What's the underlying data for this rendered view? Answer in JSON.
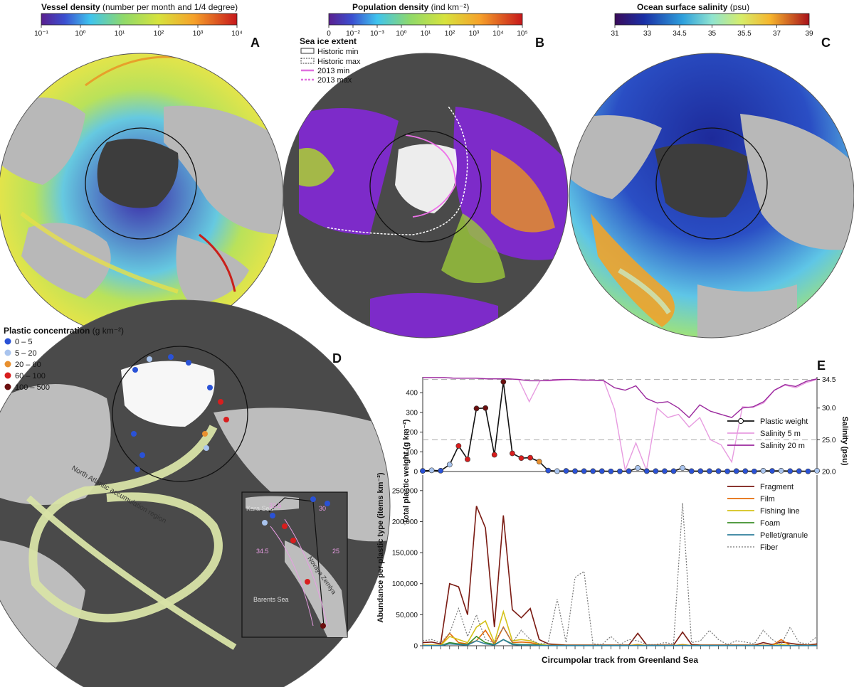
{
  "panels": {
    "A": {
      "letter": "A",
      "colorbar_title_bold": "Vessel density",
      "colorbar_title_rest": " (number per month and 1/4 degree)",
      "ticks": [
        "10⁻¹",
        "10⁰",
        "10¹",
        "10²",
        "10³",
        "10⁴"
      ]
    },
    "B": {
      "letter": "B",
      "colorbar_title_bold": "Population density",
      "colorbar_title_rest": " (ind km⁻²)",
      "ticks": [
        "0",
        "10⁻²",
        "10⁻³",
        "10⁰",
        "10¹",
        "10²",
        "10³",
        "10⁴",
        "10⁵"
      ],
      "ice_legend_title": "Sea ice extent",
      "ice_legend": [
        "Historic min",
        "Historic max",
        "2013 min",
        "2013 max"
      ]
    },
    "C": {
      "letter": "C",
      "colorbar_title_bold": "Ocean surface salinity",
      "colorbar_title_rest": " (psu)",
      "ticks": [
        "31",
        "33",
        "34.5",
        "35",
        "35.5",
        "37",
        "39"
      ]
    },
    "D": {
      "letter": "D",
      "legend_title_bold": "Plastic concentration",
      "legend_title_rest": " (g km⁻²)",
      "legend": [
        {
          "label": "0 – 5",
          "color": "#2a52d6"
        },
        {
          "label": "5 – 20",
          "color": "#a9c4ee"
        },
        {
          "label": "20 – 60",
          "color": "#e8902f"
        },
        {
          "label": "60 – 100",
          "color": "#d81e1e"
        },
        {
          "label": "100 – 500",
          "color": "#6b0f0f"
        }
      ],
      "region_label": "North Atlantic accumulation region",
      "inset_labels": {
        "kara": "Kara Sea",
        "barents": "Barents Sea",
        "novaya": "Novaya Zemlya",
        "c33": "33.5",
        "c34": "34.5",
        "c30": "30",
        "c25": "25"
      }
    },
    "E": {
      "letter": "E"
    }
  },
  "chart_data": [
    {
      "type": "line",
      "panel": "E-top",
      "xlabel": "",
      "ylabel": "Total plastic weight (g km⁻²)",
      "y2label": "Salinity (psu)",
      "ylim": [
        0,
        480
      ],
      "y2lim": [
        20.0,
        34.9
      ],
      "yticks": [
        0,
        100,
        200,
        300,
        400
      ],
      "y2ticks": [
        "20.0",
        "25.0",
        "30.0",
        "34.5"
      ],
      "y2tick_values": [
        20.0,
        25.0,
        30.0,
        34.5
      ],
      "dashed_ref": [
        25.0,
        34.5
      ],
      "series": [
        {
          "name": "Plastic weight",
          "axis": "left",
          "color": "#111111",
          "values": [
            3,
            6,
            4,
            35,
            130,
            62,
            320,
            322,
            85,
            455,
            92,
            68,
            70,
            50,
            5,
            2,
            3,
            2,
            2,
            2,
            2,
            1,
            1,
            2,
            18,
            2,
            2,
            2,
            2,
            18,
            2,
            2,
            2,
            2,
            1,
            2,
            2,
            1,
            4,
            3,
            4,
            2,
            2,
            1,
            4
          ],
          "point_colors": [
            "#2a52d6",
            "#a9c4ee",
            "#2a52d6",
            "#a9c4ee",
            "#d81e1e",
            "#d81e1e",
            "#6b0f0f",
            "#6b0f0f",
            "#d81e1e",
            "#6b0f0f",
            "#d81e1e",
            "#d81e1e",
            "#d81e1e",
            "#e8902f",
            "#2a52d6",
            "#a9c4ee",
            "#2a52d6",
            "#2a52d6",
            "#2a52d6",
            "#2a52d6",
            "#2a52d6",
            "#2a52d6",
            "#2a52d6",
            "#2a52d6",
            "#a9c4ee",
            "#2a52d6",
            "#2a52d6",
            "#2a52d6",
            "#2a52d6",
            "#a9c4ee",
            "#2a52d6",
            "#2a52d6",
            "#2a52d6",
            "#2a52d6",
            "#2a52d6",
            "#2a52d6",
            "#2a52d6",
            "#2a52d6",
            "#a9c4ee",
            "#2a52d6",
            "#a9c4ee",
            "#2a52d6",
            "#2a52d6",
            "#2a52d6",
            "#a9c4ee"
          ]
        },
        {
          "name": "Salinity 5 m",
          "axis": "right",
          "color": "#e79be0",
          "values": [
            34.8,
            34.8,
            34.8,
            34.7,
            34.7,
            34.7,
            34.6,
            34.6,
            34.6,
            34.5,
            31.0,
            34.3,
            34.3,
            34.4,
            34.5,
            34.4,
            34.4,
            34.3,
            29.8,
            20.2,
            24.5,
            20.2,
            30.0,
            28.5,
            29.0,
            27.0,
            28.5,
            25.0,
            24.2,
            21.5,
            30.2,
            30.1,
            30.8,
            32.8,
            33.6,
            33.2,
            34.0,
            34.5
          ]
        },
        {
          "name": "Salinity 20 m",
          "axis": "right",
          "color": "#9b2a9e",
          "values": [
            34.8,
            34.8,
            34.8,
            34.7,
            34.7,
            34.7,
            34.6,
            34.6,
            34.6,
            34.5,
            34.3,
            34.3,
            34.4,
            34.5,
            34.5,
            34.4,
            34.4,
            34.3,
            33.2,
            32.8,
            33.5,
            31.5,
            30.8,
            31.0,
            30.0,
            28.5,
            30.5,
            29.5,
            29.0,
            28.5,
            30.0,
            30.2,
            31.0,
            32.8,
            33.7,
            33.4,
            34.2,
            34.6
          ]
        }
      ]
    },
    {
      "type": "line",
      "panel": "E-bottom",
      "xlabel": "Circumpolar track from Greenland Sea",
      "ylabel": "Abundance per plastic type (items km⁻²)",
      "ylim": [
        0,
        275000
      ],
      "yticks": [
        "0",
        "50,000",
        "100,000",
        "150,000",
        "200,000",
        "250,000"
      ],
      "ytick_values": [
        0,
        50000,
        100000,
        150000,
        200000,
        250000
      ],
      "series": [
        {
          "name": "Fragment",
          "color": "#7a1a12",
          "values": [
            5000,
            6000,
            3000,
            100000,
            95000,
            50000,
            225000,
            190000,
            30000,
            210000,
            58000,
            45000,
            60000,
            10000,
            3000,
            2000,
            1000,
            1000,
            1000,
            1000,
            1000,
            1000,
            1000,
            1000,
            20000,
            1000,
            1000,
            1000,
            1000,
            22000,
            2000,
            1000,
            1000,
            1000,
            1000,
            1000,
            1000,
            1000,
            5000,
            2000,
            6000,
            4000,
            2000,
            1000,
            3000
          ]
        },
        {
          "name": "Film",
          "color": "#e46c0a",
          "values": [
            1000,
            1000,
            1000,
            20000,
            5000,
            3000,
            8000,
            25000,
            2000,
            30000,
            5000,
            6000,
            5000,
            2000,
            500,
            500,
            300,
            300,
            300,
            300,
            300,
            300,
            300,
            300,
            2000,
            300,
            300,
            300,
            300,
            2000,
            300,
            300,
            300,
            300,
            300,
            300,
            300,
            300,
            1000,
            300,
            10000,
            300,
            300,
            300,
            300
          ]
        },
        {
          "name": "Fishing line",
          "color": "#d4c21a",
          "values": [
            500,
            1000,
            500,
            15000,
            10000,
            5000,
            30000,
            40000,
            5000,
            55000,
            8000,
            10000,
            8000,
            3000,
            500,
            500,
            300,
            300,
            300,
            300,
            300,
            300,
            300,
            300,
            1000,
            300,
            300,
            300,
            300,
            1000,
            300,
            300,
            300,
            300,
            300,
            300,
            300,
            300,
            500,
            300,
            2000,
            300,
            300,
            300,
            300
          ]
        },
        {
          "name": "Foam",
          "color": "#3c8f2a",
          "values": [
            300,
            300,
            300,
            5000,
            3000,
            2000,
            15000,
            5000,
            2000,
            10000,
            3000,
            2000,
            2000,
            1000,
            300,
            300,
            300,
            300,
            300,
            300,
            300,
            300,
            300,
            300,
            500,
            300,
            300,
            300,
            300,
            500,
            300,
            300,
            300,
            300,
            300,
            300,
            300,
            300,
            300,
            300,
            300,
            300,
            300,
            300,
            300
          ]
        },
        {
          "name": "Pellet/granule",
          "color": "#2f7f9c",
          "values": [
            200,
            200,
            200,
            3000,
            2000,
            1000,
            8000,
            3000,
            1000,
            10000,
            2000,
            1000,
            1000,
            500,
            200,
            200,
            200,
            200,
            200,
            200,
            200,
            200,
            200,
            200,
            300,
            200,
            200,
            200,
            200,
            300,
            200,
            200,
            200,
            200,
            200,
            200,
            200,
            200,
            200,
            200,
            200,
            200,
            200,
            200,
            200
          ]
        },
        {
          "name": "Fiber",
          "color": "#777777",
          "values": [
            8000,
            10000,
            5000,
            20000,
            60000,
            15000,
            50000,
            10000,
            5000,
            30000,
            5000,
            25000,
            10000,
            3000,
            5000,
            75000,
            5000,
            110000,
            120000,
            3000,
            2000,
            15000,
            2000,
            10000,
            8000,
            2000,
            2000,
            5000,
            3000,
            230000,
            5000,
            8000,
            25000,
            10000,
            2000,
            8000,
            6000,
            3000,
            25000,
            10000,
            2000,
            30000,
            5000,
            3000,
            15000
          ]
        }
      ]
    }
  ]
}
